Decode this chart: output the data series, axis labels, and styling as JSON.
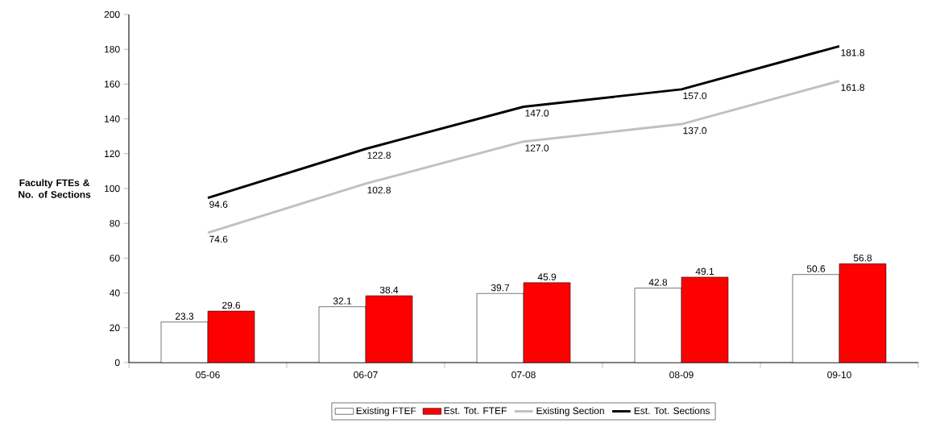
{
  "chart_data": {
    "type": "bar",
    "ylabel": "Faculty FTEs & No. of Sections",
    "categories": [
      "05-06",
      "06-07",
      "07-08",
      "08-09",
      "09-10"
    ],
    "series": [
      {
        "name": "Existing FTEF",
        "type": "bar",
        "color": "#ffffff",
        "values": [
          23.3,
          32.1,
          39.7,
          42.8,
          50.6
        ],
        "value_labels": [
          "23.3",
          "32.1",
          "39.7",
          "42.8",
          "50.6"
        ]
      },
      {
        "name": "Est. Tot. FTEF",
        "type": "bar",
        "color": "#ff0000",
        "values": [
          29.6,
          38.4,
          45.9,
          49.1,
          56.8
        ],
        "value_labels": [
          "29.6",
          "38.4",
          "45.9",
          "49.1",
          "56.8"
        ]
      },
      {
        "name": "Existing Section",
        "type": "line",
        "color": "#c0c0c0",
        "values": [
          74.6,
          102.8,
          127.0,
          137.0,
          161.8
        ],
        "value_labels": [
          "74.6",
          "102.8",
          "127.0",
          "137.0",
          "161.8"
        ]
      },
      {
        "name": "Est. Tot. Sections",
        "type": "line",
        "color": "#000000",
        "values": [
          94.6,
          122.8,
          147.0,
          157.0,
          181.8
        ],
        "value_labels": [
          "94.6",
          "122.8",
          "147.0",
          "157.0",
          "181.8"
        ]
      }
    ],
    "ylim": [
      0,
      200
    ],
    "yticks": [
      0,
      20,
      40,
      60,
      80,
      100,
      120,
      140,
      160,
      180,
      200
    ],
    "grid": false,
    "legend": "bottom",
    "marker": "none",
    "line_style": "solid"
  }
}
